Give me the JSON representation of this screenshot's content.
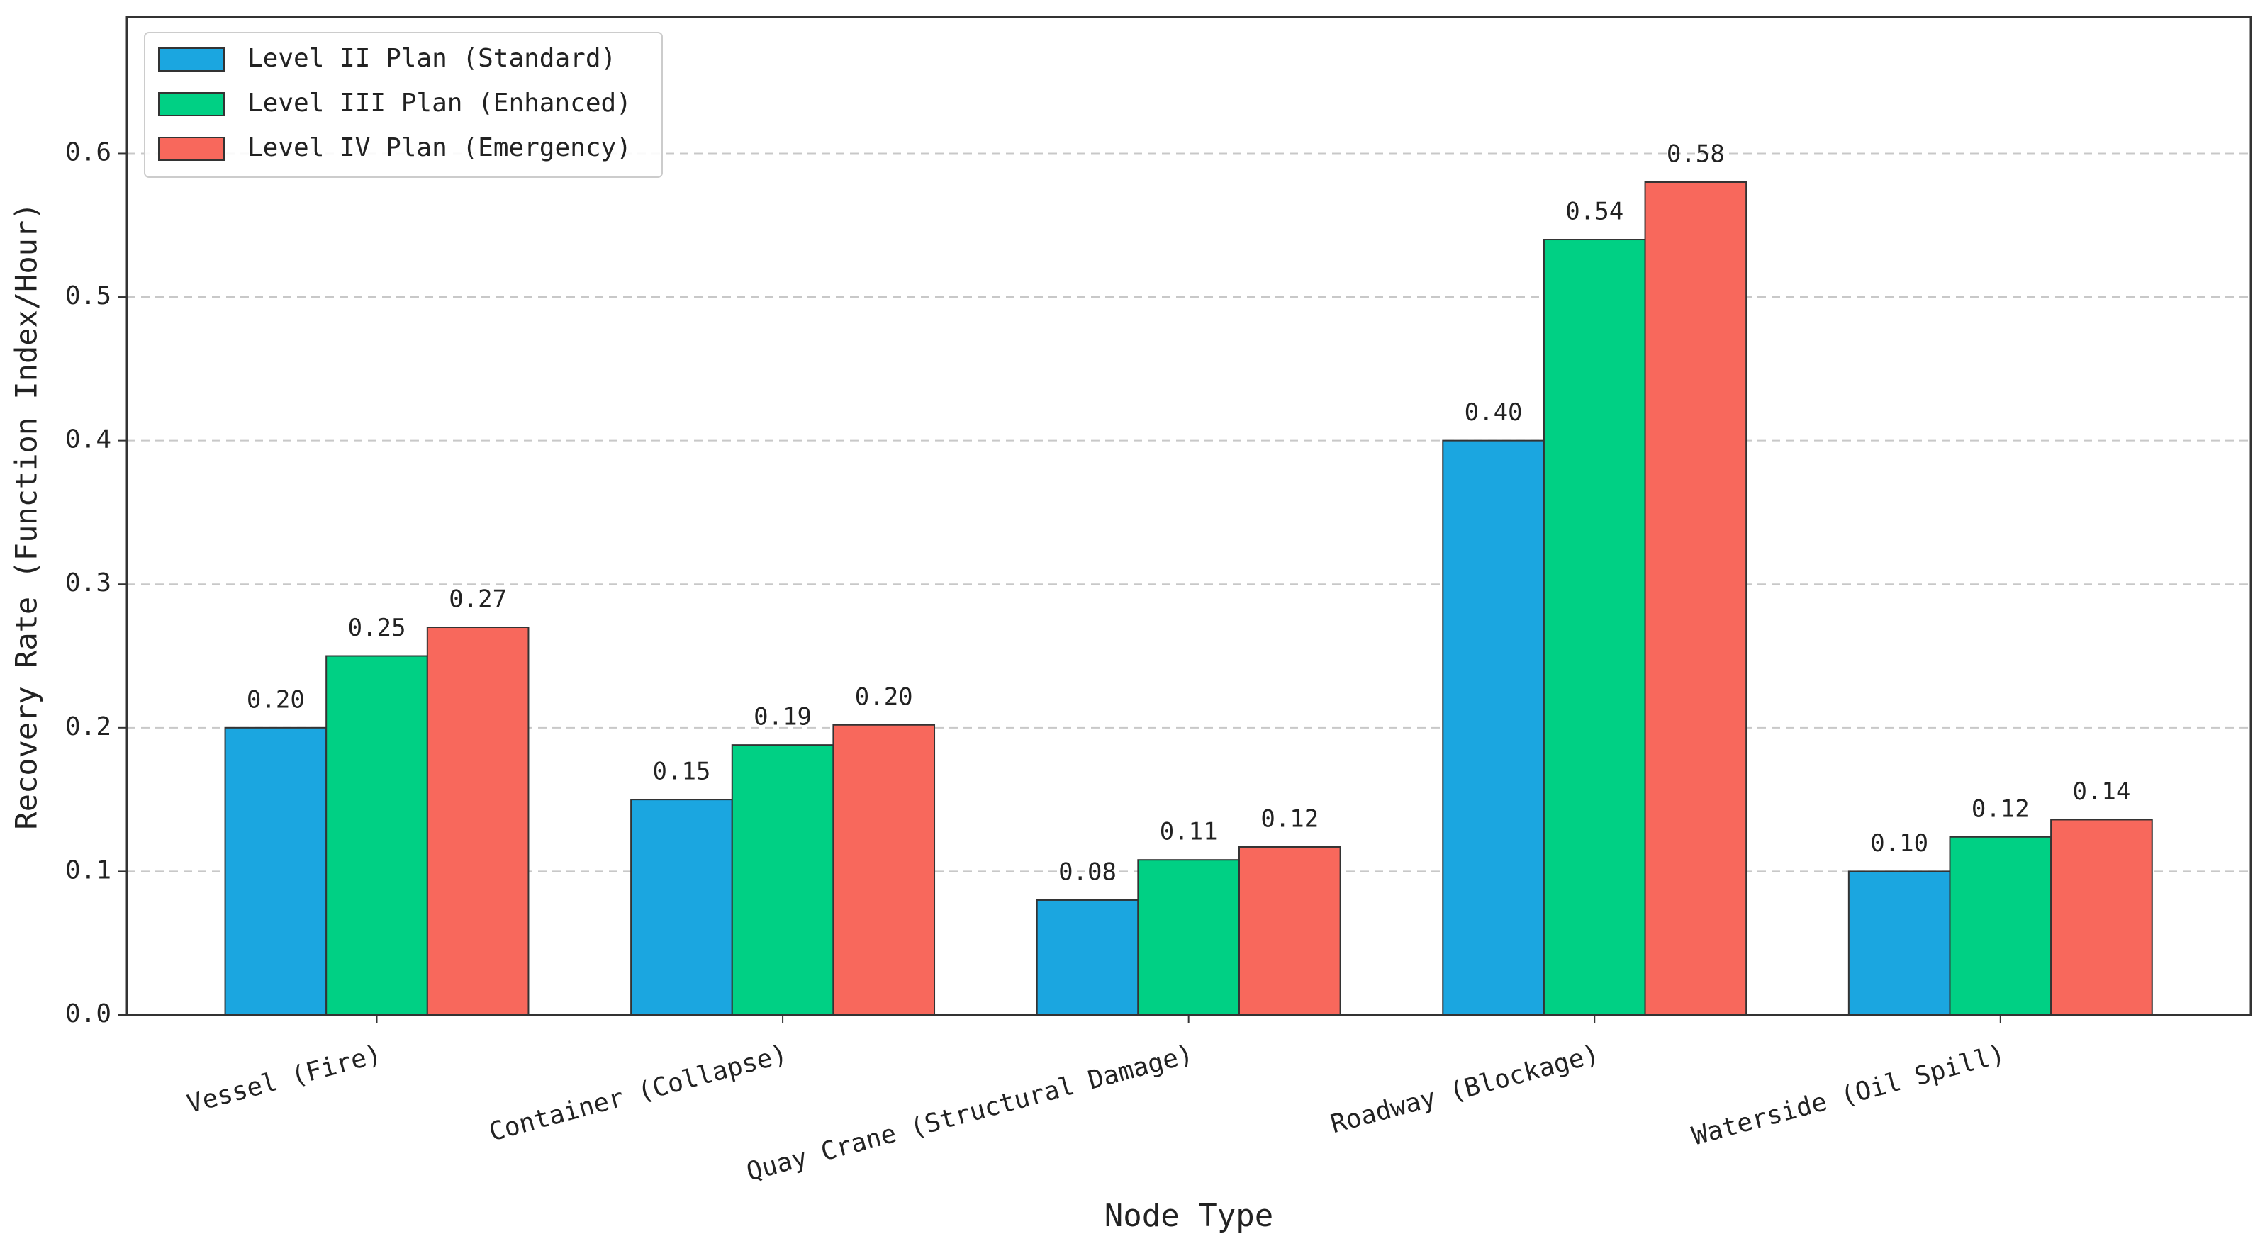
{
  "chart_data": {
    "type": "bar",
    "xlabel": "Node Type",
    "ylabel": "Recovery Rate (Function Index/Hour)",
    "categories": [
      "Vessel (Fire)",
      "Container (Collapse)",
      "Quay Crane (Structural Damage)",
      "Roadway (Blockage)",
      "Waterside (Oil Spill)"
    ],
    "series": [
      {
        "name": "Level II Plan (Standard)",
        "color": "#1ba6e0",
        "values": [
          0.2,
          0.15,
          0.08,
          0.4,
          0.1
        ],
        "value_labels": [
          "0.20",
          "0.15",
          "0.08",
          "0.40",
          "0.10"
        ]
      },
      {
        "name": "Level III Plan (Enhanced)",
        "color": "#00d084",
        "values": [
          0.25,
          0.188,
          0.108,
          0.54,
          0.124
        ],
        "value_labels": [
          "0.25",
          "0.19",
          "0.11",
          "0.54",
          "0.12"
        ]
      },
      {
        "name": "Level IV Plan (Emergency)",
        "color": "#f8685c",
        "values": [
          0.27,
          0.202,
          0.117,
          0.58,
          0.136
        ],
        "value_labels": [
          "0.27",
          "0.20",
          "0.12",
          "0.58",
          "0.14"
        ]
      }
    ],
    "ylim": [
      0,
      0.695
    ],
    "yticks": [
      {
        "value": 0,
        "label": "0.0"
      },
      0.1,
      0.2,
      0.3,
      0.4,
      0.5,
      0.6
    ],
    "grid": true,
    "legend": "upper left"
  }
}
